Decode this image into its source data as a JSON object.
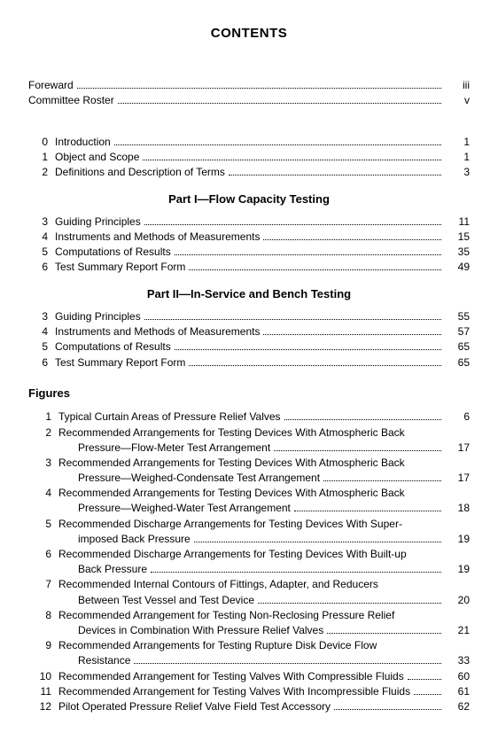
{
  "title": "CONTENTS",
  "prelim": [
    {
      "label": "Foreward",
      "page": "iii"
    },
    {
      "label": "Committee Roster",
      "page": "v"
    }
  ],
  "intro": [
    {
      "num": "0",
      "label": "Introduction",
      "page": "1"
    },
    {
      "num": "1",
      "label": "Object and Scope",
      "page": "1"
    },
    {
      "num": "2",
      "label": "Definitions and Description of Terms",
      "page": "3"
    }
  ],
  "part1_heading": "Part I—Flow Capacity Testing",
  "part1": [
    {
      "num": "3",
      "label": "Guiding Principles",
      "page": "11"
    },
    {
      "num": "4",
      "label": "Instruments and Methods of Measurements",
      "page": "15"
    },
    {
      "num": "5",
      "label": "Computations of Results",
      "page": "35"
    },
    {
      "num": "6",
      "label": "Test Summary Report Form",
      "page": "49"
    }
  ],
  "part2_heading": "Part II—In-Service and Bench Testing",
  "part2": [
    {
      "num": "3",
      "label": "Guiding Principles",
      "page": "55"
    },
    {
      "num": "4",
      "label": "Instruments and Methods of Measurements",
      "page": "57"
    },
    {
      "num": "5",
      "label": "Computations of Results",
      "page": "65"
    },
    {
      "num": "6",
      "label": "Test Summary Report Form",
      "page": "65"
    }
  ],
  "figures_heading": "Figures",
  "figures": [
    {
      "num": "1",
      "line1": "Typical Curtain Areas of Pressure Relief Valves",
      "page": "6"
    },
    {
      "num": "2",
      "line1": "Recommended Arrangements for Testing Devices With Atmospheric Back",
      "line2": "Pressure—Flow-Meter Test Arrangement",
      "page": "17"
    },
    {
      "num": "3",
      "line1": "Recommended Arrangements for Testing Devices With Atmospheric Back",
      "line2": "Pressure—Weighed-Condensate Test Arrangement",
      "page": "17"
    },
    {
      "num": "4",
      "line1": "Recommended Arrangements for Testing Devices With Atmospheric Back",
      "line2": "Pressure—Weighed-Water Test Arrangement",
      "page": "18"
    },
    {
      "num": "5",
      "line1": "Recommended Discharge Arrangements for Testing Devices With Super-",
      "line2": "imposed Back Pressure",
      "page": "19"
    },
    {
      "num": "6",
      "line1": "Recommended Discharge Arrangements for Testing Devices With Built-up",
      "line2": "Back Pressure",
      "page": "19"
    },
    {
      "num": "7",
      "line1": "Recommended Internal Contours of Fittings, Adapter, and Reducers",
      "line2": "Between Test Vessel and Test Device",
      "page": "20"
    },
    {
      "num": "8",
      "line1": "Recommended Arrangement for Testing Non-Reclosing Pressure Relief",
      "line2": "Devices in Combination With Pressure Relief Valves",
      "page": "21"
    },
    {
      "num": "9",
      "line1": "Recommended Arrangements for Testing Rupture Disk Device Flow",
      "line2": "Resistance",
      "page": "33"
    },
    {
      "num": "10",
      "line1": "Recommended Arrangement for Testing Valves With Compressible Fluids",
      "page": "60"
    },
    {
      "num": "11",
      "line1": "Recommended Arrangement for Testing Valves With Incompressible Fluids",
      "page": "61"
    },
    {
      "num": "12",
      "line1": "Pilot Operated Pressure Relief Valve Field Test Accessory",
      "page": "62"
    }
  ]
}
